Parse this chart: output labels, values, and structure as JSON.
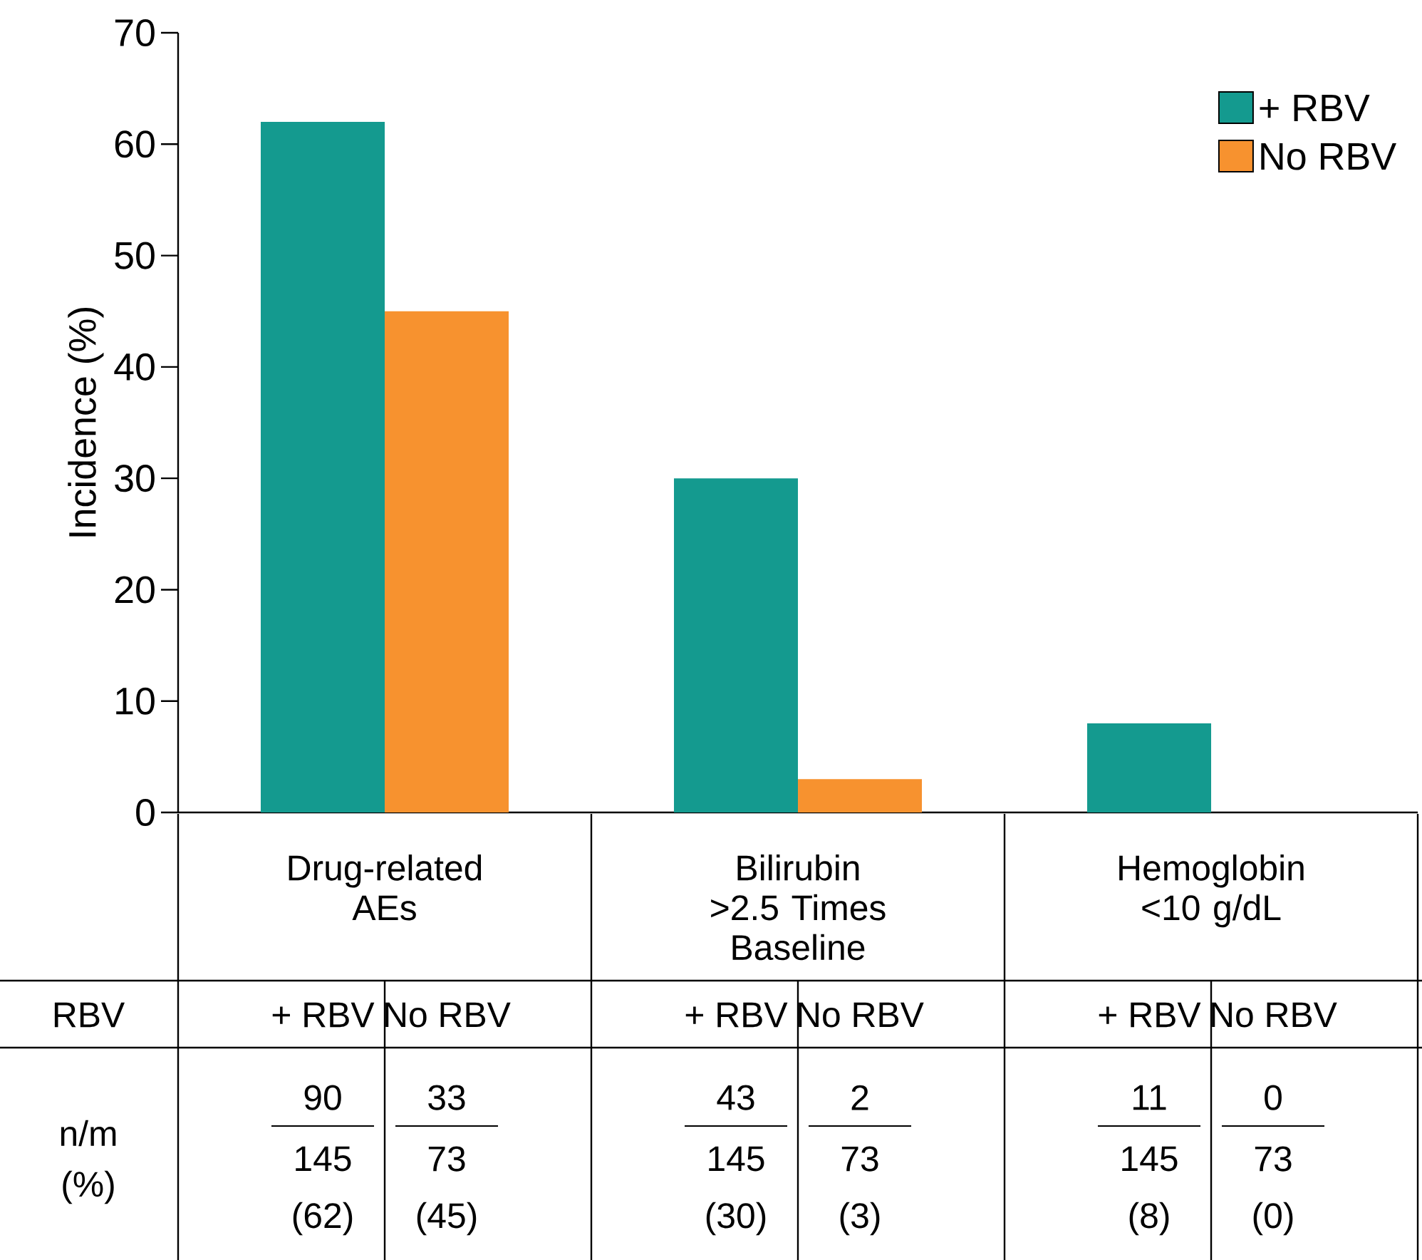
{
  "chart_data": {
    "type": "bar",
    "ylabel": "Incidence (%)",
    "categories": [
      "Drug-related AEs",
      "Bilirubin >2.5 Times Baseline",
      "Hemoglobin <10 g/dL"
    ],
    "series": [
      {
        "name": "+ RBV",
        "color": "#149a8f",
        "values": [
          62,
          30,
          8
        ]
      },
      {
        "name": "No RBV",
        "color": "#f7922f",
        "values": [
          45,
          3,
          0
        ]
      }
    ],
    "ylim": [
      0,
      70
    ],
    "yticks": [
      0,
      10,
      20,
      30,
      40,
      50,
      60,
      70
    ],
    "legend": "top right",
    "grid": false,
    "annotations": [
      "RBV",
      "n/m",
      "(%)",
      "90",
      "145",
      "(62)",
      "33",
      "73",
      "(45)",
      "43",
      "145",
      "(30)",
      "2",
      "73",
      "(3)",
      "11",
      "145",
      "(8)",
      "0",
      "73",
      "(0)"
    ]
  }
}
